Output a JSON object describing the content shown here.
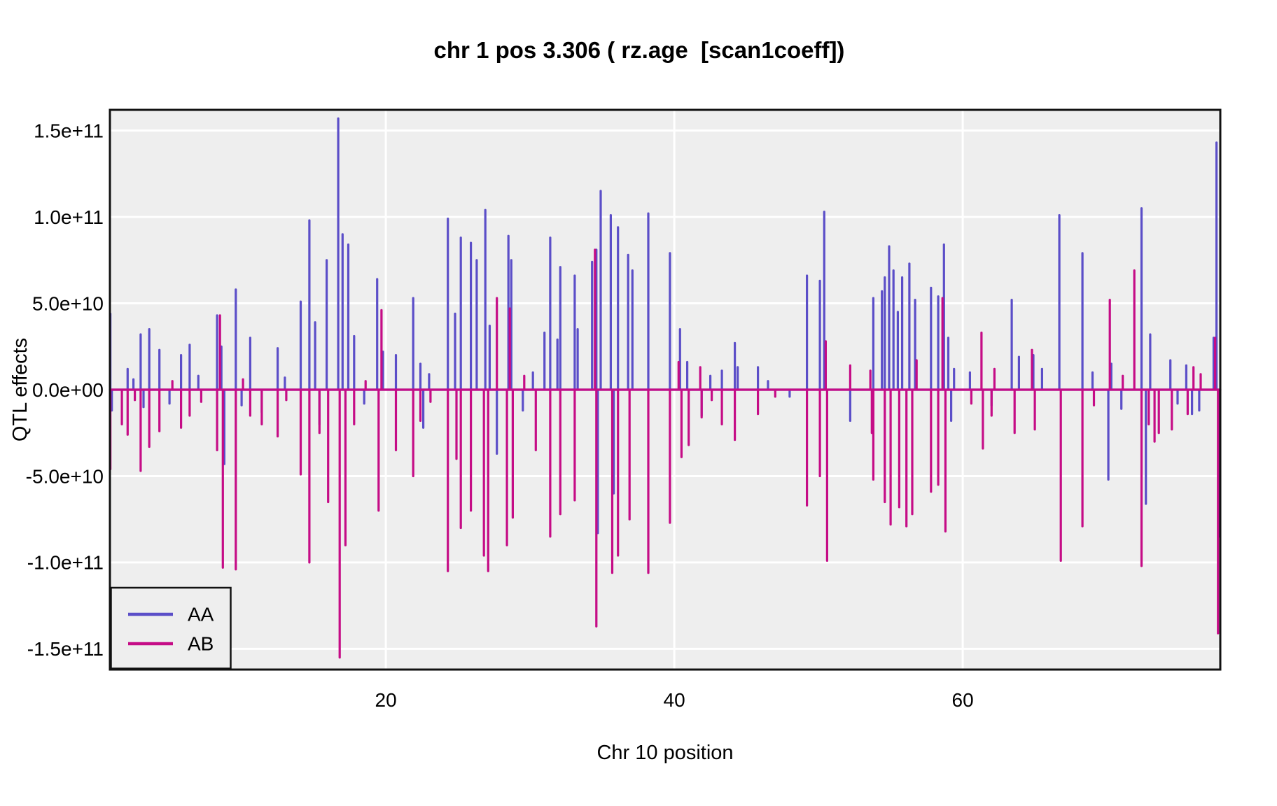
{
  "chart_data": {
    "type": "line",
    "title": "chr 1 pos 3.306 ( rz.age  [scan1coeff])",
    "xlabel": "Chr 10 position",
    "ylabel": "QTL effects",
    "panel_bg": "#EEEEEE",
    "grid_color": "#FFFFFF",
    "border_color": "#111111",
    "xlim": [
      0.87,
      77.86
    ],
    "ylim": [
      -162000000000.0,
      162000000000.0
    ],
    "x_ticks": {
      "values": [
        20,
        40,
        60
      ],
      "labels": [
        "20",
        "40",
        "60"
      ]
    },
    "y_ticks": {
      "values": [
        150000000000.0,
        100000000000.0,
        50000000000.0,
        0,
        -50000000000.0,
        -100000000000.0,
        -150000000000.0
      ],
      "labels": [
        "1.5e+11",
        "1.0e+11",
        "5.0e+10",
        "0.0e+00",
        "-5.0e+10",
        "-1.0e+11",
        "-1.5e+11"
      ]
    },
    "legend": {
      "position": "bottom-left",
      "entries": [
        {
          "label": "AA",
          "color": "#5B4EC8"
        },
        {
          "label": "AB",
          "color": "#C50C86"
        }
      ]
    },
    "series": [
      {
        "name": "AA",
        "color": "#5B4EC8",
        "baseline": 0,
        "spikes": [
          [
            0.9,
            44000000000.0
          ],
          [
            1.0,
            -12000000000.0
          ],
          [
            2.1,
            12000000000.0
          ],
          [
            2.5,
            6000000000.0
          ],
          [
            3.0,
            32000000000.0
          ],
          [
            3.2,
            -10000000000.0
          ],
          [
            3.6,
            35000000000.0
          ],
          [
            4.3,
            23000000000.0
          ],
          [
            5.0,
            -8000000000.0
          ],
          [
            5.8,
            20000000000.0
          ],
          [
            6.4,
            26000000000.0
          ],
          [
            7.0,
            8000000000.0
          ],
          [
            8.3,
            43000000000.0
          ],
          [
            8.6,
            25000000000.0
          ],
          [
            8.8,
            -43000000000.0
          ],
          [
            9.6,
            58000000000.0
          ],
          [
            10.0,
            -9000000000.0
          ],
          [
            10.6,
            30000000000.0
          ],
          [
            11.4,
            -13000000000.0
          ],
          [
            12.5,
            24000000000.0
          ],
          [
            13.0,
            7000000000.0
          ],
          [
            14.1,
            51000000000.0
          ],
          [
            14.7,
            98000000000.0
          ],
          [
            15.1,
            39000000000.0
          ],
          [
            15.4,
            -20000000000.0
          ],
          [
            15.9,
            75000000000.0
          ],
          [
            16.7,
            157000000000.0
          ],
          [
            17.0,
            90000000000.0
          ],
          [
            17.4,
            84000000000.0
          ],
          [
            17.8,
            31000000000.0
          ],
          [
            18.5,
            -8000000000.0
          ],
          [
            19.4,
            64000000000.0
          ],
          [
            19.8,
            22000000000.0
          ],
          [
            20.7,
            20000000000.0
          ],
          [
            21.9,
            53000000000.0
          ],
          [
            22.4,
            15000000000.0
          ],
          [
            22.6,
            -22000000000.0
          ],
          [
            23.0,
            9000000000.0
          ],
          [
            24.3,
            99000000000.0
          ],
          [
            24.8,
            44000000000.0
          ],
          [
            25.2,
            88000000000.0
          ],
          [
            25.9,
            85000000000.0
          ],
          [
            26.3,
            75000000000.0
          ],
          [
            26.9,
            104000000000.0
          ],
          [
            27.2,
            37000000000.0
          ],
          [
            27.7,
            -37000000000.0
          ],
          [
            28.5,
            89000000000.0
          ],
          [
            28.7,
            75000000000.0
          ],
          [
            29.5,
            -12000000000.0
          ],
          [
            30.2,
            10000000000.0
          ],
          [
            31.0,
            33000000000.0
          ],
          [
            31.4,
            88000000000.0
          ],
          [
            31.9,
            29000000000.0
          ],
          [
            32.1,
            71000000000.0
          ],
          [
            33.1,
            66000000000.0
          ],
          [
            33.3,
            35000000000.0
          ],
          [
            34.3,
            74000000000.0
          ],
          [
            34.6,
            81000000000.0
          ],
          [
            34.7,
            -83000000000.0
          ],
          [
            34.9,
            115000000000.0
          ],
          [
            35.6,
            101000000000.0
          ],
          [
            35.8,
            -60000000000.0
          ],
          [
            36.1,
            94000000000.0
          ],
          [
            36.8,
            78000000000.0
          ],
          [
            37.1,
            69000000000.0
          ],
          [
            38.2,
            102000000000.0
          ],
          [
            39.7,
            79000000000.0
          ],
          [
            40.4,
            35000000000.0
          ],
          [
            40.9,
            16000000000.0
          ],
          [
            41.9,
            -15000000000.0
          ],
          [
            42.5,
            8000000000.0
          ],
          [
            43.3,
            11000000000.0
          ],
          [
            44.2,
            27000000000.0
          ],
          [
            44.4,
            13000000000.0
          ],
          [
            45.8,
            13000000000.0
          ],
          [
            46.5,
            5000000000.0
          ],
          [
            48.0,
            -4000000000.0
          ],
          [
            49.2,
            66000000000.0
          ],
          [
            50.1,
            63000000000.0
          ],
          [
            50.4,
            103000000000.0
          ],
          [
            52.2,
            -18000000000.0
          ],
          [
            53.8,
            53000000000.0
          ],
          [
            54.4,
            57000000000.0
          ],
          [
            54.6,
            65000000000.0
          ],
          [
            54.9,
            83000000000.0
          ],
          [
            55.2,
            69000000000.0
          ],
          [
            55.5,
            45000000000.0
          ],
          [
            55.8,
            65000000000.0
          ],
          [
            56.3,
            73000000000.0
          ],
          [
            56.7,
            52000000000.0
          ],
          [
            57.8,
            59000000000.0
          ],
          [
            58.3,
            54000000000.0
          ],
          [
            58.7,
            84000000000.0
          ],
          [
            59.0,
            30000000000.0
          ],
          [
            59.2,
            -18000000000.0
          ],
          [
            59.4,
            12000000000.0
          ],
          [
            60.5,
            10000000000.0
          ],
          [
            62.0,
            -9000000000.0
          ],
          [
            63.4,
            52000000000.0
          ],
          [
            63.9,
            19000000000.0
          ],
          [
            64.9,
            20000000000.0
          ],
          [
            65.5,
            12000000000.0
          ],
          [
            66.7,
            101000000000.0
          ],
          [
            68.3,
            79000000000.0
          ],
          [
            69.0,
            10000000000.0
          ],
          [
            70.1,
            -52000000000.0
          ],
          [
            70.3,
            15000000000.0
          ],
          [
            71.0,
            -11000000000.0
          ],
          [
            72.4,
            105000000000.0
          ],
          [
            72.7,
            -66000000000.0
          ],
          [
            73.0,
            32000000000.0
          ],
          [
            74.4,
            17000000000.0
          ],
          [
            74.9,
            -8000000000.0
          ],
          [
            75.5,
            14000000000.0
          ],
          [
            75.9,
            -14000000000.0
          ],
          [
            76.4,
            -12000000000.0
          ],
          [
            77.4,
            30000000000.0
          ],
          [
            77.6,
            143000000000.0
          ],
          [
            77.8,
            -85000000000.0
          ]
        ]
      },
      {
        "name": "AB",
        "color": "#C50C86",
        "baseline": 0,
        "spikes": [
          [
            0.9,
            -46000000000.0
          ],
          [
            1.7,
            -20000000000.0
          ],
          [
            2.1,
            -26000000000.0
          ],
          [
            2.6,
            -6000000000.0
          ],
          [
            3.0,
            -47000000000.0
          ],
          [
            3.6,
            -33000000000.0
          ],
          [
            4.3,
            -24000000000.0
          ],
          [
            5.2,
            5000000000.0
          ],
          [
            5.8,
            -22000000000.0
          ],
          [
            6.4,
            -15000000000.0
          ],
          [
            7.2,
            -7000000000.0
          ],
          [
            8.3,
            -35000000000.0
          ],
          [
            8.5,
            43000000000.0
          ],
          [
            8.7,
            -103000000000.0
          ],
          [
            9.6,
            -104000000000.0
          ],
          [
            10.1,
            6000000000.0
          ],
          [
            10.6,
            -15000000000.0
          ],
          [
            11.4,
            -20000000000.0
          ],
          [
            12.5,
            -27000000000.0
          ],
          [
            13.1,
            -6000000000.0
          ],
          [
            14.1,
            -49000000000.0
          ],
          [
            14.7,
            -100000000000.0
          ],
          [
            15.4,
            -25000000000.0
          ],
          [
            16.0,
            -65000000000.0
          ],
          [
            16.8,
            -155000000000.0
          ],
          [
            17.2,
            -90000000000.0
          ],
          [
            17.8,
            -20000000000.0
          ],
          [
            18.6,
            5000000000.0
          ],
          [
            19.5,
            -70000000000.0
          ],
          [
            19.7,
            46000000000.0
          ],
          [
            20.7,
            -35000000000.0
          ],
          [
            21.9,
            -50000000000.0
          ],
          [
            22.4,
            -18000000000.0
          ],
          [
            23.1,
            -7000000000.0
          ],
          [
            24.3,
            -105000000000.0
          ],
          [
            24.9,
            -40000000000.0
          ],
          [
            25.2,
            -80000000000.0
          ],
          [
            25.9,
            -70000000000.0
          ],
          [
            26.8,
            -96000000000.0
          ],
          [
            27.1,
            -105000000000.0
          ],
          [
            27.7,
            53000000000.0
          ],
          [
            28.4,
            -90000000000.0
          ],
          [
            28.6,
            47000000000.0
          ],
          [
            28.8,
            -74000000000.0
          ],
          [
            29.6,
            8000000000.0
          ],
          [
            30.4,
            -35000000000.0
          ],
          [
            31.4,
            -85000000000.0
          ],
          [
            32.1,
            -72000000000.0
          ],
          [
            33.1,
            -64000000000.0
          ],
          [
            34.5,
            81000000000.0
          ],
          [
            34.6,
            -137000000000.0
          ],
          [
            35.7,
            -106000000000.0
          ],
          [
            36.1,
            -96000000000.0
          ],
          [
            36.9,
            -75000000000.0
          ],
          [
            38.2,
            -106000000000.0
          ],
          [
            39.7,
            -77000000000.0
          ],
          [
            40.3,
            16000000000.0
          ],
          [
            40.5,
            -39000000000.0
          ],
          [
            41.0,
            -32000000000.0
          ],
          [
            41.8,
            13000000000.0
          ],
          [
            41.9,
            -16000000000.0
          ],
          [
            42.6,
            -6000000000.0
          ],
          [
            43.3,
            -20000000000.0
          ],
          [
            44.2,
            -29000000000.0
          ],
          [
            45.8,
            -14000000000.0
          ],
          [
            47.0,
            -4000000000.0
          ],
          [
            49.2,
            -67000000000.0
          ],
          [
            50.1,
            -50000000000.0
          ],
          [
            50.5,
            28000000000.0
          ],
          [
            50.6,
            -99000000000.0
          ],
          [
            52.2,
            14000000000.0
          ],
          [
            53.6,
            11000000000.0
          ],
          [
            53.7,
            -25000000000.0
          ],
          [
            53.8,
            -52000000000.0
          ],
          [
            54.6,
            -65000000000.0
          ],
          [
            55.0,
            -78000000000.0
          ],
          [
            55.6,
            -68000000000.0
          ],
          [
            56.1,
            -79000000000.0
          ],
          [
            56.5,
            -72000000000.0
          ],
          [
            56.8,
            17000000000.0
          ],
          [
            57.8,
            -59000000000.0
          ],
          [
            58.3,
            -55000000000.0
          ],
          [
            58.6,
            53000000000.0
          ],
          [
            58.8,
            -82000000000.0
          ],
          [
            60.6,
            -8000000000.0
          ],
          [
            61.3,
            33000000000.0
          ],
          [
            61.4,
            -34000000000.0
          ],
          [
            62.0,
            -15000000000.0
          ],
          [
            62.2,
            12000000000.0
          ],
          [
            63.6,
            -25000000000.0
          ],
          [
            64.8,
            23000000000.0
          ],
          [
            65.0,
            -23000000000.0
          ],
          [
            66.8,
            -99000000000.0
          ],
          [
            68.3,
            -79000000000.0
          ],
          [
            69.1,
            -9000000000.0
          ],
          [
            70.2,
            52000000000.0
          ],
          [
            71.1,
            8000000000.0
          ],
          [
            71.9,
            69000000000.0
          ],
          [
            72.4,
            -102000000000.0
          ],
          [
            72.9,
            -20000000000.0
          ],
          [
            73.3,
            -30000000000.0
          ],
          [
            73.6,
            -25000000000.0
          ],
          [
            74.5,
            -23000000000.0
          ],
          [
            75.6,
            -14000000000.0
          ],
          [
            76.0,
            13000000000.0
          ],
          [
            76.5,
            9000000000.0
          ],
          [
            77.5,
            30000000000.0
          ],
          [
            77.7,
            -141000000000.0
          ]
        ]
      }
    ]
  }
}
